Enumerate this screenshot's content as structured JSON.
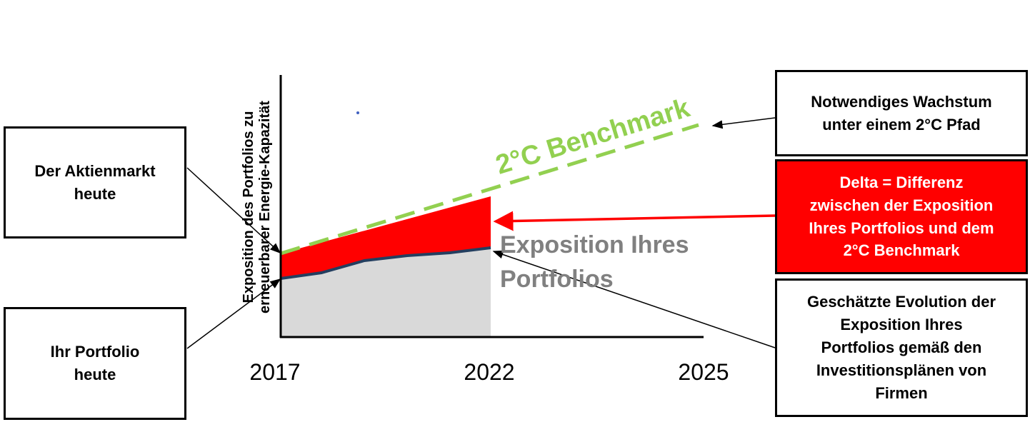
{
  "axis": {
    "y_label": [
      "Exposition des Portfolios zu",
      "erneuerbarer Energie-Kapazität"
    ],
    "x_ticks": [
      "2017",
      "2022",
      "2025"
    ]
  },
  "benchmark_label": "2°C Benchmark",
  "portfolio_label": [
    "Exposition Ihres",
    "Portfolios"
  ],
  "boxes": {
    "market_today": [
      "Der Aktienmarkt",
      "heute"
    ],
    "portfolio_today": [
      "Ihr Portfolio",
      "heute"
    ],
    "required_growth": [
      "Notwendiges Wachstum",
      "unter einem 2°C Pfad"
    ],
    "delta": [
      "Delta = Differenz",
      "zwischen der Exposition",
      "Ihres Portfolios und dem",
      "2°C Benchmark"
    ],
    "estimated_evolution": [
      "Geschätzte Evolution der",
      "Exposition Ihres",
      "Portfolios gemäß den",
      "Investitionsplänen von",
      "Firmen"
    ]
  }
}
